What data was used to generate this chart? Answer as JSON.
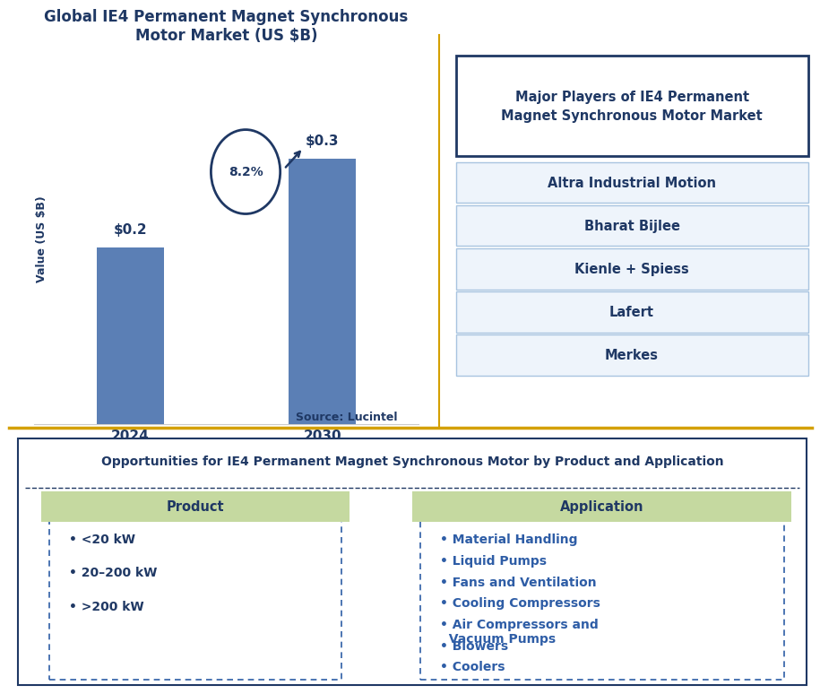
{
  "title_left": "Global IE4 Permanent Magnet Synchronous\nMotor Market (US $B)",
  "title_right": "Major Players of IE4 Permanent\nMagnet Synchronous Motor Market",
  "bar_years": [
    "2024",
    "2030"
  ],
  "bar_values": [
    0.2,
    0.3
  ],
  "bar_labels": [
    "$0.2",
    "$0.3"
  ],
  "bar_color": "#5B7FB5",
  "cagr_text": "8.2%",
  "ylabel": "Value (US $B)",
  "source_text": "Source: Lucintel",
  "major_players": [
    "Altra Industrial Motion",
    "Bharat Bijlee",
    "Kienle + Spiess",
    "Lafert",
    "Merkes"
  ],
  "opportunities_title": "Opportunities for IE4 Permanent Magnet Synchronous Motor by Product and Application",
  "product_header": "Product",
  "application_header": "Application",
  "product_items": [
    "• <20 kW",
    "• 20–200 kW",
    "• >200 kW"
  ],
  "application_items": [
    "• Material Handling",
    "• Liquid Pumps",
    "• Fans and Ventilation",
    "• Cooling Compressors",
    "• Air Compressors and\n  Vacuum Pumps",
    "• Blowers",
    "• Coolers"
  ],
  "dark_navy": "#1F3864",
  "medium_blue": "#2E5DA6",
  "light_blue_box": "#EEF4FB",
  "green_header": "#C5D9A0",
  "gold_line": "#D4A000",
  "player_box_border": "#A8C4E0",
  "right_title_border": "#1F3864"
}
